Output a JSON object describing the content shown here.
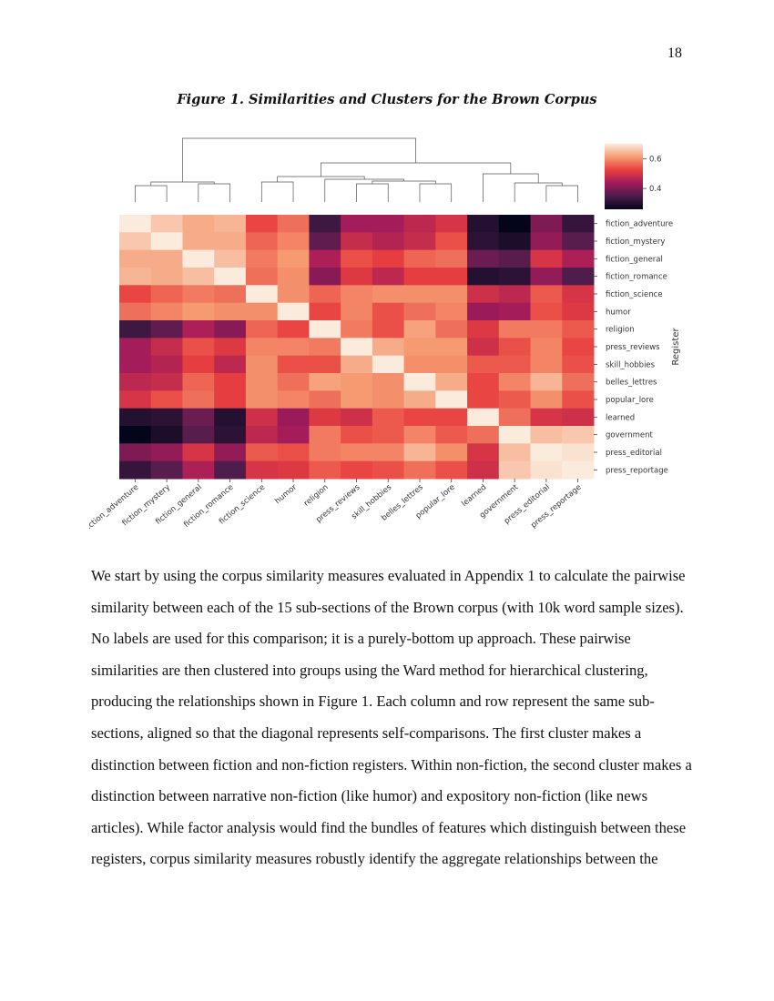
{
  "page_number": "18",
  "figure_caption": "Figure 1. Similarities and Clusters for the Brown Corpus",
  "chart_data": {
    "type": "heatmap",
    "title": "",
    "categories": [
      "fiction_adventure",
      "fiction_mystery",
      "fiction_general",
      "fiction_romance",
      "fiction_science",
      "humor",
      "religion",
      "press_reviews",
      "skill_hobbies",
      "belles_lettres",
      "popular_lore",
      "learned",
      "government",
      "press_editorial",
      "press_reportage"
    ],
    "row_axis_label": "Register",
    "colorbar": {
      "range": [
        0.26,
        0.7
      ],
      "ticks": [
        "0.6",
        "0.4"
      ],
      "tick_values": [
        0.6,
        0.4
      ],
      "colormap": "rocket"
    },
    "dendrogram": "top, Ward hierarchical clustering",
    "values": [
      [
        0.7,
        0.66,
        0.63,
        0.64,
        0.53,
        0.57,
        0.33,
        0.44,
        0.44,
        0.47,
        0.5,
        0.3,
        0.26,
        0.4,
        0.32
      ],
      [
        0.66,
        0.7,
        0.63,
        0.63,
        0.56,
        0.59,
        0.37,
        0.48,
        0.46,
        0.48,
        0.54,
        0.31,
        0.29,
        0.42,
        0.36
      ],
      [
        0.63,
        0.63,
        0.7,
        0.65,
        0.58,
        0.61,
        0.45,
        0.54,
        0.52,
        0.56,
        0.57,
        0.38,
        0.36,
        0.5,
        0.45
      ],
      [
        0.64,
        0.63,
        0.65,
        0.7,
        0.57,
        0.6,
        0.41,
        0.51,
        0.47,
        0.52,
        0.52,
        0.3,
        0.31,
        0.42,
        0.35
      ],
      [
        0.53,
        0.56,
        0.58,
        0.57,
        0.7,
        0.6,
        0.56,
        0.59,
        0.6,
        0.6,
        0.6,
        0.49,
        0.47,
        0.55,
        0.5
      ],
      [
        0.57,
        0.59,
        0.61,
        0.6,
        0.6,
        0.7,
        0.53,
        0.59,
        0.54,
        0.57,
        0.59,
        0.43,
        0.44,
        0.54,
        0.51
      ],
      [
        0.33,
        0.37,
        0.45,
        0.41,
        0.56,
        0.53,
        0.7,
        0.58,
        0.54,
        0.62,
        0.57,
        0.51,
        0.58,
        0.58,
        0.55
      ],
      [
        0.44,
        0.48,
        0.54,
        0.51,
        0.59,
        0.59,
        0.58,
        0.7,
        0.63,
        0.61,
        0.61,
        0.49,
        0.54,
        0.59,
        0.53
      ],
      [
        0.44,
        0.46,
        0.52,
        0.47,
        0.6,
        0.54,
        0.54,
        0.63,
        0.7,
        0.6,
        0.6,
        0.55,
        0.55,
        0.59,
        0.54
      ],
      [
        0.47,
        0.48,
        0.56,
        0.52,
        0.6,
        0.57,
        0.62,
        0.61,
        0.6,
        0.7,
        0.63,
        0.53,
        0.59,
        0.64,
        0.57
      ],
      [
        0.5,
        0.54,
        0.57,
        0.52,
        0.6,
        0.59,
        0.57,
        0.61,
        0.6,
        0.63,
        0.7,
        0.53,
        0.55,
        0.6,
        0.54
      ],
      [
        0.3,
        0.31,
        0.38,
        0.3,
        0.49,
        0.43,
        0.51,
        0.49,
        0.55,
        0.53,
        0.53,
        0.7,
        0.57,
        0.5,
        0.49
      ],
      [
        0.26,
        0.29,
        0.36,
        0.31,
        0.47,
        0.44,
        0.58,
        0.54,
        0.55,
        0.59,
        0.55,
        0.57,
        0.7,
        0.65,
        0.66
      ],
      [
        0.4,
        0.42,
        0.5,
        0.42,
        0.55,
        0.54,
        0.58,
        0.59,
        0.59,
        0.64,
        0.6,
        0.5,
        0.65,
        0.7,
        0.69
      ],
      [
        0.32,
        0.36,
        0.45,
        0.35,
        0.5,
        0.51,
        0.55,
        0.53,
        0.54,
        0.57,
        0.54,
        0.49,
        0.66,
        0.69,
        0.7
      ]
    ]
  },
  "body_lines": [
    "We start by using the corpus similarity measures evaluated in Appendix 1 to calculate the pairwise",
    "similarity between each of the 15 sub-sections of the Brown corpus (with 10k word sample sizes).",
    "No labels are used for this comparison; it is a purely-bottom up approach. These pairwise",
    "similarities are then clustered into groups using the Ward method for hierarchical clustering,",
    "producing the relationships shown in Figure 1. Each column and row represent the same sub-",
    "sections, aligned so that the diagonal represents self-comparisons. The first cluster makes a",
    "distinction between fiction and non-fiction registers. Within non-fiction, the second cluster makes a",
    "distinction between narrative non-fiction (like humor) and expository non-fiction (like news",
    "articles). While factor analysis would find the bundles of features which distinguish between these",
    "registers, corpus similarity measures robustly identify the aggregate relationships between the"
  ]
}
